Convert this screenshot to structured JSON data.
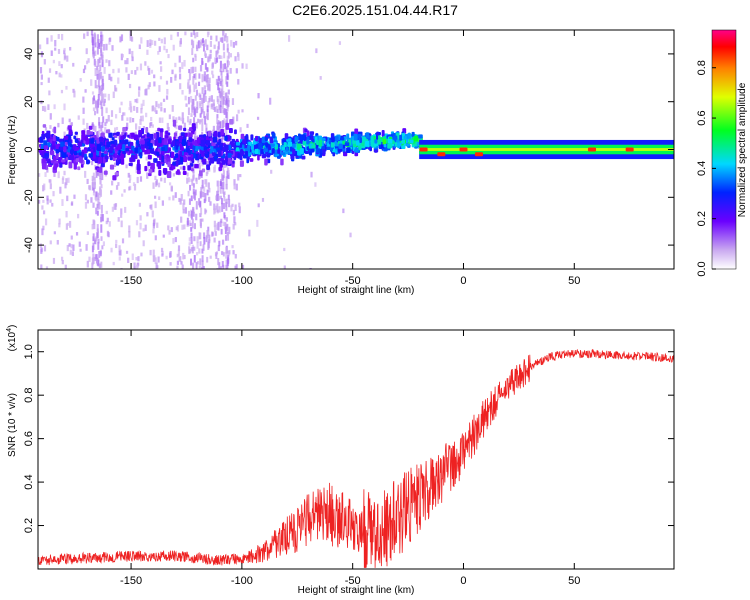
{
  "title": "C2E6.2025.151.04.44.R17",
  "colors": {
    "snr_line": "#ee2222",
    "frame": "#000000"
  },
  "chart_data": [
    {
      "type": "heatmap",
      "xlabel": "Height of straight line (km)",
      "ylabel": "Frequency (Hz)",
      "xlim": [
        -192,
        95
      ],
      "ylim": [
        -50,
        50
      ],
      "xticks": [
        -150,
        -100,
        -50,
        0,
        50
      ],
      "yticks": [
        -40,
        -20,
        0,
        20,
        40
      ],
      "colorbar": {
        "label": "Normalized spectral amplitude",
        "range": [
          0.0,
          0.95
        ],
        "ticks": [
          0.0,
          0.2,
          0.4,
          0.6,
          0.8
        ],
        "colormap": "rainbow (white-purple-blue-cyan-green-yellow-red-magenta)"
      },
      "description_regions": [
        {
          "x": [
            -192,
            -105
          ],
          "spread_hz": 12,
          "amplitude": 0.25
        },
        {
          "x": [
            -105,
            -20
          ],
          "spread_hz": 8,
          "amplitude": 0.45
        },
        {
          "x": [
            -20,
            95
          ],
          "spread_hz": 3,
          "amplitude": 0.7
        }
      ]
    },
    {
      "type": "line",
      "xlabel": "Height of straight line (km)",
      "ylabel": "SNR (10 * v/v)",
      "y_multiplier": "(x10",
      "y_multiplier_exp": "4",
      "xlim": [
        -192,
        95
      ],
      "ylim": [
        0.0,
        1.1
      ],
      "xticks": [
        -150,
        -100,
        -50,
        0,
        50
      ],
      "yticks": [
        0.2,
        0.4,
        0.6,
        0.8,
        1.0
      ],
      "series": [
        {
          "x": [
            -192,
            -170,
            -150,
            -130,
            -110,
            -100,
            -90,
            -80,
            -70,
            -60,
            -50,
            -40,
            -30,
            -20,
            -10,
            0,
            10,
            20,
            30,
            40,
            50,
            60,
            70,
            80,
            95
          ],
          "y": [
            0.03,
            0.04,
            0.05,
            0.05,
            0.03,
            0.04,
            0.08,
            0.15,
            0.22,
            0.25,
            0.2,
            0.15,
            0.25,
            0.35,
            0.45,
            0.55,
            0.72,
            0.85,
            0.93,
            0.98,
            0.99,
            0.99,
            0.98,
            0.98,
            0.97
          ]
        }
      ]
    }
  ]
}
